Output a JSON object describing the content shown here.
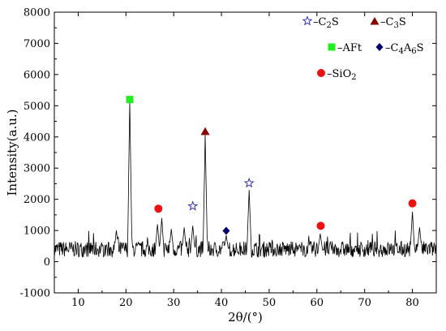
{
  "chart_data": {
    "type": "line",
    "title": "",
    "xlabel": "2θ/(°)",
    "ylabel": "Intensity(a.u.)",
    "xlim": [
      5,
      85
    ],
    "ylim": [
      -1000,
      8000
    ],
    "xticks": [
      10,
      20,
      30,
      40,
      50,
      60,
      70,
      80
    ],
    "yticks": [
      -1000,
      0,
      1000,
      2000,
      3000,
      4000,
      5000,
      6000,
      7000,
      8000
    ],
    "grid": false,
    "legend_position": "top-right",
    "series": [
      {
        "type": "line",
        "color": "#000000",
        "baseline": 400,
        "noise_amplitude": 260,
        "peaks": [
          {
            "x": 18.0,
            "y": 1000
          },
          {
            "x": 20.8,
            "y": 5150
          },
          {
            "x": 26.6,
            "y": 1200
          },
          {
            "x": 27.5,
            "y": 1400
          },
          {
            "x": 29.5,
            "y": 1050
          },
          {
            "x": 32.2,
            "y": 1100
          },
          {
            "x": 34.0,
            "y": 1150
          },
          {
            "x": 36.6,
            "y": 4100
          },
          {
            "x": 41.0,
            "y": 850
          },
          {
            "x": 45.8,
            "y": 2300
          },
          {
            "x": 60.7,
            "y": 900
          },
          {
            "x": 80.0,
            "y": 1600
          },
          {
            "x": 81.5,
            "y": 1100
          }
        ]
      }
    ],
    "markers": [
      {
        "phase": "AFt",
        "x": 20.8,
        "y": 5200,
        "shape": "square",
        "color": "#22ee22"
      },
      {
        "phase": "SiO2",
        "x": 26.8,
        "y": 1700,
        "shape": "circle",
        "color": "#ee1111"
      },
      {
        "phase": "C2S",
        "x": 34.0,
        "y": 1780,
        "shape": "star-open",
        "color": "#2222aa"
      },
      {
        "phase": "C3S",
        "x": 36.6,
        "y": 4180,
        "shape": "triangle",
        "color": "#8b0000"
      },
      {
        "phase": "C4A6S",
        "x": 41.0,
        "y": 990,
        "shape": "diamond",
        "color": "#00006e"
      },
      {
        "phase": "C2S",
        "x": 45.8,
        "y": 2520,
        "shape": "star-open",
        "color": "#2222aa"
      },
      {
        "phase": "SiO2",
        "x": 60.8,
        "y": 1150,
        "shape": "circle",
        "color": "#ee1111"
      },
      {
        "phase": "SiO2",
        "x": 80.0,
        "y": 1870,
        "shape": "circle",
        "color": "#ee1111"
      }
    ],
    "legend": [
      {
        "shape": "star-open",
        "color": "#2222aa",
        "prefix": "–C",
        "sub1": "2",
        "suffix": "S",
        "sub2": ""
      },
      {
        "shape": "triangle",
        "color": "#8b0000",
        "prefix": "–C",
        "sub1": "3",
        "suffix": "S",
        "sub2": ""
      },
      {
        "shape": "square",
        "color": "#22ee22",
        "prefix": "–AFt",
        "sub1": "",
        "suffix": "",
        "sub2": ""
      },
      {
        "shape": "diamond",
        "color": "#00006e",
        "prefix": "–C",
        "sub1": "4",
        "suffix": "A",
        "sub2": "6",
        "tail": "S"
      },
      {
        "shape": "circle",
        "color": "#ee1111",
        "prefix": "–SiO",
        "sub1": "2",
        "suffix": "",
        "sub2": ""
      }
    ]
  }
}
